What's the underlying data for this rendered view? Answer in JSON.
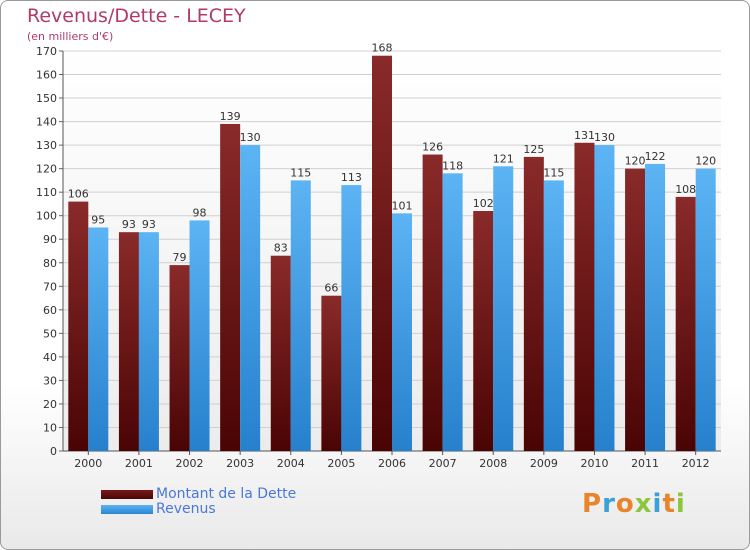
{
  "chart_data": {
    "type": "bar",
    "title": "Revenus/Dette - LECEY",
    "subtitle": "(en milliers d'€)",
    "categories": [
      "2000",
      "2001",
      "2002",
      "2003",
      "2004",
      "2005",
      "2006",
      "2007",
      "2008",
      "2009",
      "2010",
      "2011",
      "2012"
    ],
    "series": [
      {
        "name": "Montant de la Dette",
        "color": "#6b1010",
        "values": [
          106,
          93,
          79,
          139,
          83,
          66,
          168,
          126,
          102,
          125,
          131,
          120,
          108
        ]
      },
      {
        "name": "Revenus",
        "color": "#3a9ae6",
        "values": [
          95,
          93,
          98,
          130,
          115,
          113,
          101,
          118,
          121,
          115,
          130,
          122,
          120
        ]
      }
    ],
    "ylim": [
      0,
      170
    ],
    "yticks": [
      0,
      10,
      20,
      30,
      40,
      50,
      60,
      70,
      80,
      90,
      100,
      110,
      120,
      130,
      140,
      150,
      160,
      170
    ],
    "grid": true,
    "legend_position": "bottom-left"
  },
  "logo": "Proxiti"
}
